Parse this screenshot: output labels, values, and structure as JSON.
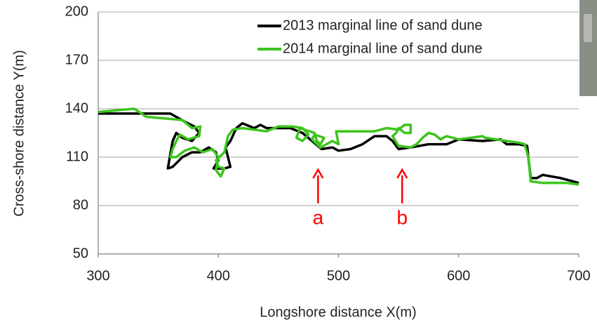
{
  "chart_data": {
    "type": "line",
    "x_label": "Longshore distance  X(m)",
    "y_label": "Cross-shore distance  Y(m)",
    "xlim": [
      300,
      700
    ],
    "xticks": [
      300,
      400,
      500,
      600,
      700
    ],
    "ylim": [
      50,
      200
    ],
    "yticks": [
      50,
      80,
      110,
      140,
      170,
      200
    ],
    "grid": true,
    "legend": "upper right",
    "series": [
      {
        "name": "2013 marginal line of sand dune",
        "color": "#000000",
        "x": [
          300,
          360,
          372,
          380,
          384,
          378,
          370,
          365,
          362,
          360,
          358,
          362,
          370,
          378,
          385,
          392,
          398,
          400,
          396,
          405,
          410,
          408,
          406,
          410,
          415,
          420,
          430,
          435,
          440,
          460,
          470,
          478,
          486,
          495,
          500,
          510,
          520,
          530,
          540,
          545,
          550,
          560,
          575,
          590,
          600,
          620,
          635,
          640,
          650,
          657,
          658,
          660,
          665,
          670,
          685,
          700
        ],
        "values": [
          137,
          137,
          132,
          129,
          125,
          120,
          122,
          125,
          120,
          112,
          103,
          104,
          110,
          113,
          113,
          116,
          113,
          108,
          103,
          103,
          104,
          110,
          116,
          120,
          128,
          131,
          128,
          130,
          128,
          128,
          125,
          120,
          115,
          116,
          114,
          115,
          118,
          123,
          123,
          120,
          115,
          116,
          118,
          118,
          121,
          120,
          121,
          118,
          118,
          117,
          110,
          97,
          97,
          99,
          97,
          94
        ]
      },
      {
        "name": "2014 marginal line of sand dune",
        "color": "#3cc41c",
        "x": [
          300,
          330,
          340,
          370,
          378,
          385,
          384,
          375,
          368,
          365,
          362,
          360,
          365,
          372,
          380,
          387,
          395,
          400,
          398,
          402,
          405,
          400,
          398,
          405,
          408,
          412,
          420,
          440,
          450,
          462,
          470,
          475,
          470,
          465,
          468,
          480,
          482,
          485,
          488,
          480,
          478,
          485,
          495,
          500,
          498,
          520,
          530,
          540,
          550,
          555,
          560,
          560,
          555,
          550,
          548,
          545,
          550,
          560,
          565,
          570,
          575,
          580,
          585,
          590,
          600,
          620,
          622,
          640,
          650,
          655,
          658,
          660,
          670,
          690,
          700
        ],
        "values": [
          138,
          140,
          135,
          133,
          128,
          129,
          123,
          121,
          124,
          120,
          115,
          110,
          110,
          114,
          116,
          113,
          115,
          110,
          102,
          98,
          103,
          104,
          108,
          113,
          123,
          127,
          128,
          126,
          129,
          129,
          128,
          124,
          120,
          122,
          128,
          125,
          120,
          118,
          122,
          124,
          121,
          116,
          120,
          118,
          126,
          126,
          126,
          128,
          127,
          130,
          130,
          125,
          125,
          128,
          125,
          123,
          117,
          116,
          118,
          122,
          125,
          124,
          121,
          123,
          121,
          123,
          122,
          120,
          119,
          118,
          110,
          95,
          94,
          94,
          93
        ]
      }
    ],
    "annotations": [
      {
        "text": "a",
        "x": 483
      },
      {
        "text": "b",
        "x": 553
      }
    ]
  }
}
